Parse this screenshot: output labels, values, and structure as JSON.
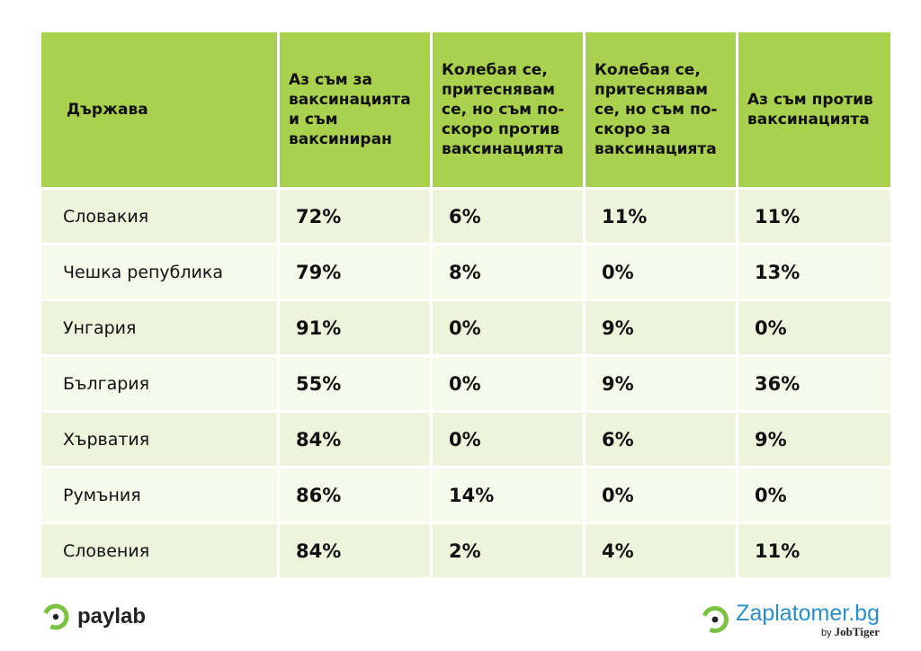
{
  "chart_data": {
    "type": "table",
    "headers": [
      "Държава",
      "Аз съм за ваксинацията и съм ваксиниран",
      "Колебая се, притеснявам се, но съм по-скоро против ваксинацията",
      "Колебая се, притеснявам се, но съм по-скоро за ваксинацията",
      "Аз съм против ваксинацията"
    ],
    "rows": [
      [
        "Словакия",
        "72%",
        "6%",
        "11%",
        "11%"
      ],
      [
        "Чешка република",
        "79%",
        "8%",
        "0%",
        "13%"
      ],
      [
        "Унгария",
        "91%",
        "0%",
        "9%",
        "0%"
      ],
      [
        "България",
        "55%",
        "0%",
        "9%",
        "36%"
      ],
      [
        "Хърватия",
        "84%",
        "0%",
        "6%",
        "9%"
      ],
      [
        "Румъния",
        "86%",
        "14%",
        "0%",
        "0%"
      ],
      [
        "Словения",
        "84%",
        "2%",
        "4%",
        "11%"
      ]
    ]
  },
  "colors": {
    "header_bg": "#a9d14e",
    "row_odd_bg": "#eef4dc",
    "row_even_bg": "#f6faeb",
    "paylab_green": "#7cc242",
    "zaplatomer_blue": "#2a8ec9"
  },
  "logos": {
    "left": {
      "icon": "paylab-ring-icon",
      "name": "paylab"
    },
    "right": {
      "icon": "zaplatomer-ring-icon",
      "name": "Zaplatomer.bg",
      "sub_prefix": "by",
      "sub_brand": "JobTiger"
    }
  }
}
